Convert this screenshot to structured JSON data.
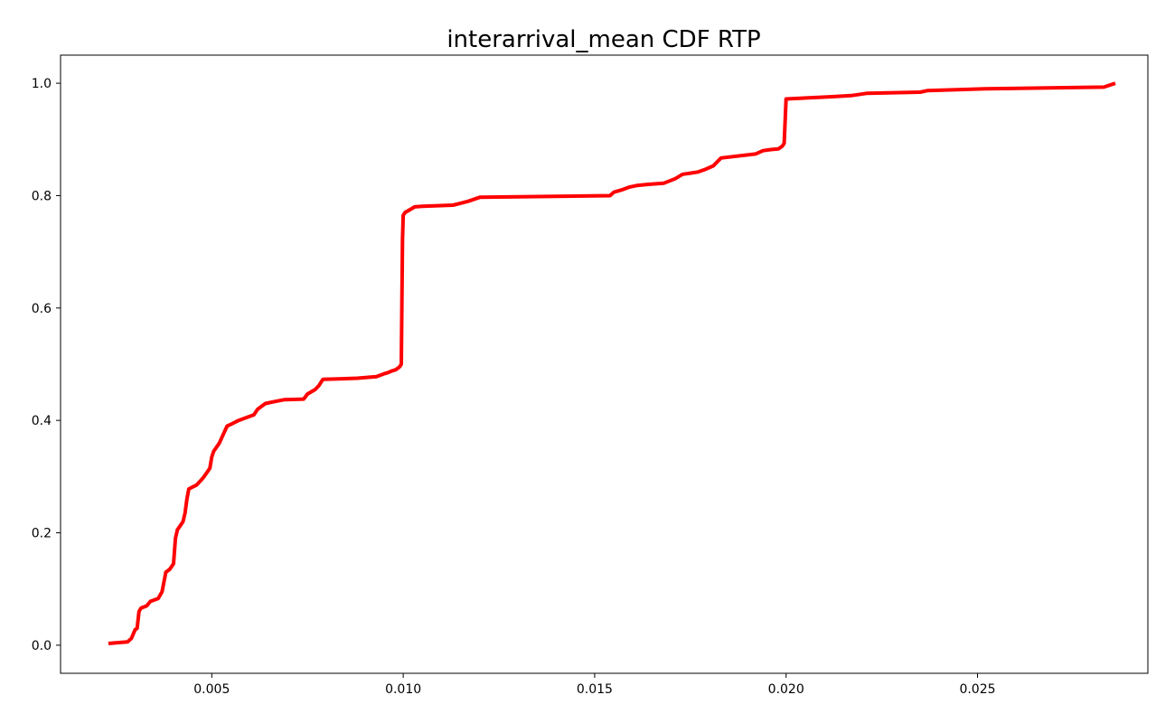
{
  "chart_data": {
    "type": "line",
    "title": "interarrival_mean CDF RTP",
    "xlabel": "",
    "ylabel": "",
    "xlim": [
      0.00105,
      0.02945
    ],
    "ylim": [
      -0.05,
      1.05
    ],
    "xticks": [
      {
        "value": 0.005,
        "label": "0.005"
      },
      {
        "value": 0.01,
        "label": "0.010"
      },
      {
        "value": 0.015,
        "label": "0.015"
      },
      {
        "value": 0.02,
        "label": "0.020"
      },
      {
        "value": 0.025,
        "label": "0.025"
      }
    ],
    "yticks": [
      {
        "value": 0.0,
        "label": "0.0"
      },
      {
        "value": 0.2,
        "label": "0.2"
      },
      {
        "value": 0.4,
        "label": "0.4"
      },
      {
        "value": 0.6,
        "label": "0.6"
      },
      {
        "value": 0.8,
        "label": "0.8"
      },
      {
        "value": 1.0,
        "label": "1.0"
      }
    ],
    "grid": false,
    "legend": "none",
    "series": [
      {
        "color": "#ff0000",
        "x": [
          0.0023,
          0.0028,
          0.0029,
          0.003,
          0.00305,
          0.0031,
          0.00315,
          0.0033,
          0.0034,
          0.0036,
          0.0037,
          0.0038,
          0.0039,
          0.004,
          0.00405,
          0.0041,
          0.0042,
          0.00425,
          0.0043,
          0.00435,
          0.0044,
          0.0046,
          0.0047,
          0.0048,
          0.0049,
          0.00495,
          0.005,
          0.00505,
          0.0052,
          0.0053,
          0.0054,
          0.0055,
          0.0057,
          0.0059,
          0.0061,
          0.0062,
          0.0064,
          0.0066,
          0.0069,
          0.0074,
          0.0075,
          0.0077,
          0.0078,
          0.0079,
          0.0088,
          0.0093,
          0.0095,
          0.0096,
          0.0097,
          0.0098,
          0.0099,
          0.00995,
          0.00998,
          0.01,
          0.01005,
          0.0102,
          0.0103,
          0.0105,
          0.0113,
          0.0117,
          0.012,
          0.0154,
          0.0155,
          0.0157,
          0.0159,
          0.0161,
          0.0164,
          0.0168,
          0.0171,
          0.0173,
          0.0175,
          0.0177,
          0.0179,
          0.0181,
          0.0183,
          0.0192,
          0.0194,
          0.0196,
          0.0198,
          0.0199,
          0.01995,
          0.02,
          0.0209,
          0.0212,
          0.0217,
          0.0221,
          0.0235,
          0.0237,
          0.0252,
          0.0283,
          0.0286
        ],
        "y": [
          0.003,
          0.006,
          0.012,
          0.028,
          0.03,
          0.06,
          0.066,
          0.07,
          0.078,
          0.083,
          0.095,
          0.13,
          0.135,
          0.145,
          0.19,
          0.205,
          0.215,
          0.22,
          0.235,
          0.26,
          0.278,
          0.285,
          0.292,
          0.3,
          0.31,
          0.315,
          0.335,
          0.345,
          0.36,
          0.375,
          0.39,
          0.393,
          0.4,
          0.405,
          0.41,
          0.42,
          0.43,
          0.433,
          0.437,
          0.438,
          0.447,
          0.455,
          0.462,
          0.473,
          0.475,
          0.478,
          0.483,
          0.485,
          0.488,
          0.49,
          0.495,
          0.5,
          0.72,
          0.765,
          0.77,
          0.776,
          0.78,
          0.781,
          0.783,
          0.79,
          0.797,
          0.8,
          0.806,
          0.81,
          0.815,
          0.818,
          0.82,
          0.822,
          0.83,
          0.838,
          0.84,
          0.842,
          0.847,
          0.853,
          0.867,
          0.874,
          0.88,
          0.882,
          0.883,
          0.888,
          0.893,
          0.972,
          0.975,
          0.976,
          0.978,
          0.982,
          0.984,
          0.987,
          0.99,
          0.993,
          1.0
        ]
      }
    ]
  }
}
